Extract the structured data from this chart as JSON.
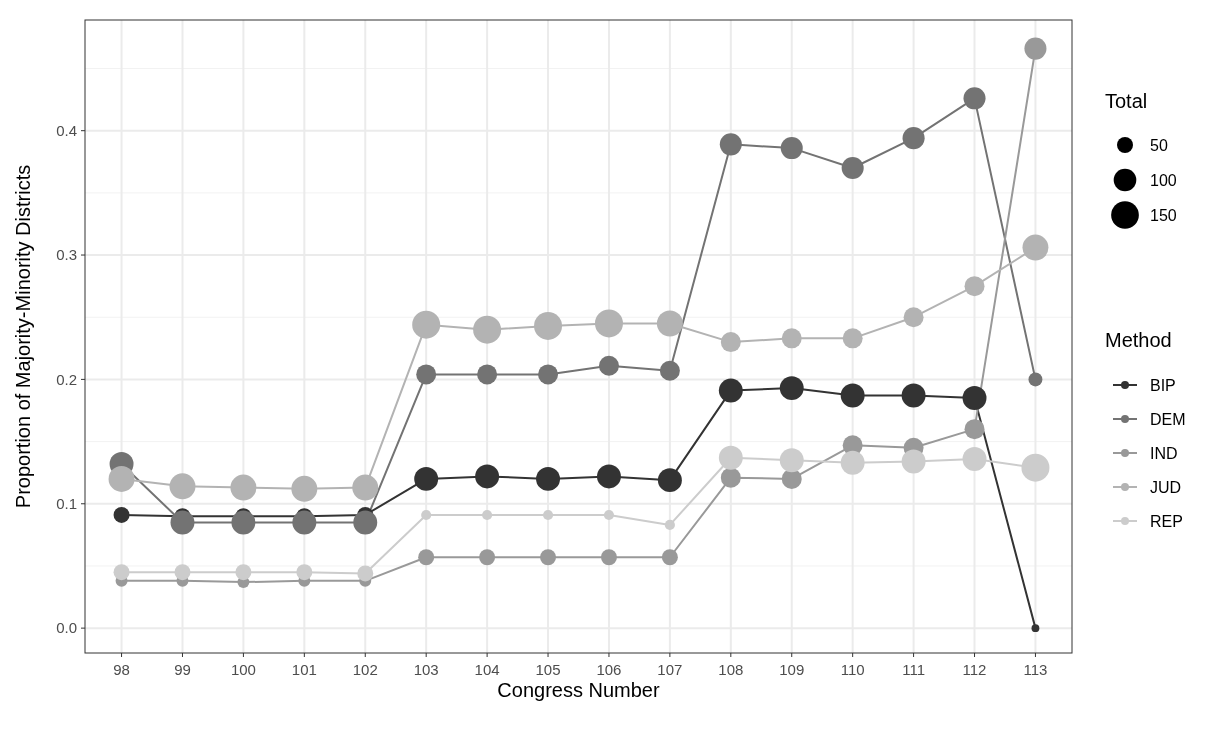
{
  "chart_data": {
    "type": "bubble",
    "xlabel": "Congress Number",
    "ylabel": "Proportion of Majority-Minority Districts",
    "legend_title": "Method",
    "annotations": [
      "Total"
    ],
    "categories": [
      "98",
      "99",
      "100",
      "101",
      "102",
      "103",
      "104",
      "105",
      "106",
      "107",
      "108",
      "109",
      "110",
      "111",
      "112",
      "113"
    ],
    "ylim": [
      -0.02,
      0.489
    ],
    "yticks": [
      {
        "value": 0,
        "label": "0.0"
      },
      {
        "value": 0.1,
        "label": "0.1"
      },
      {
        "value": 0.2,
        "label": "0.2"
      },
      {
        "value": 0.3,
        "label": "0.3"
      },
      {
        "value": 0.4,
        "label": "0.4"
      }
    ],
    "size_legend": [
      50,
      100,
      150
    ],
    "grid": true,
    "legend": "right",
    "marker": "circle",
    "line_style": "solid",
    "series": [
      {
        "type": "line",
        "marker": "none",
        "color": "#333333",
        "values": [
          0.091,
          0.09,
          0.09,
          0.09,
          0.091,
          0.12,
          0.122,
          0.12,
          0.122,
          0.119,
          0.191,
          0.193,
          0.187,
          0.187,
          0.185,
          0.0
        ]
      },
      {
        "type": "line",
        "marker": "none",
        "color": "#737373",
        "values": [
          0.132,
          0.085,
          0.085,
          0.085,
          0.085,
          0.204,
          0.204,
          0.204,
          0.211,
          0.207,
          0.389,
          0.386,
          0.37,
          0.394,
          0.426,
          0.2
        ]
      },
      {
        "type": "line",
        "marker": "none",
        "color": "#999999",
        "values": [
          0.038,
          0.038,
          0.037,
          0.038,
          0.038,
          0.057,
          0.057,
          0.057,
          0.057,
          0.057,
          0.121,
          0.12,
          0.147,
          0.145,
          0.16,
          0.466
        ]
      },
      {
        "type": "line",
        "marker": "none",
        "color": "#b3b3b3",
        "values": [
          0.12,
          0.114,
          0.113,
          0.112,
          0.113,
          0.244,
          0.24,
          0.243,
          0.245,
          0.245,
          0.23,
          0.233,
          0.233,
          0.25,
          0.275,
          0.306
        ]
      },
      {
        "type": "line",
        "marker": "none",
        "color": "#cccccc",
        "values": [
          0.045,
          0.045,
          0.045,
          0.045,
          0.044,
          0.091,
          0.091,
          0.091,
          0.091,
          0.083,
          0.137,
          0.135,
          0.133,
          0.134,
          0.136,
          0.129
        ]
      },
      {
        "name": "BIP",
        "color": "#333333",
        "values": [
          0.091,
          0.09,
          0.09,
          0.09,
          0.091,
          0.12,
          0.122,
          0.12,
          0.122,
          0.119,
          0.191,
          0.193,
          0.187,
          0.187,
          0.185,
          0.0
        ],
        "sizes": [
          50,
          50,
          50,
          50,
          50,
          112,
          112,
          112,
          112,
          112,
          112,
          112,
          112,
          112,
          112,
          12
        ]
      },
      {
        "name": "DEM",
        "color": "#737373",
        "values": [
          0.132,
          0.085,
          0.085,
          0.085,
          0.085,
          0.204,
          0.204,
          0.204,
          0.211,
          0.207,
          0.389,
          0.386,
          0.37,
          0.394,
          0.426,
          0.2
        ],
        "sizes": [
          112,
          112,
          112,
          112,
          112,
          78,
          78,
          78,
          78,
          78,
          95,
          95,
          95,
          95,
          95,
          38
        ]
      },
      {
        "name": "IND",
        "color": "#999999",
        "values": [
          0.038,
          0.038,
          0.037,
          0.038,
          0.038,
          0.057,
          0.057,
          0.057,
          0.057,
          0.057,
          0.121,
          0.12,
          0.147,
          0.145,
          0.16,
          0.466
        ],
        "sizes": [
          28,
          28,
          28,
          28,
          28,
          50,
          50,
          50,
          50,
          50,
          78,
          78,
          78,
          78,
          78,
          95
        ]
      },
      {
        "name": "JUD",
        "color": "#b3b3b3",
        "values": [
          0.12,
          0.114,
          0.113,
          0.112,
          0.113,
          0.244,
          0.24,
          0.243,
          0.245,
          0.245,
          0.23,
          0.233,
          0.233,
          0.25,
          0.275,
          0.306
        ],
        "sizes": [
          132,
          132,
          132,
          132,
          132,
          153,
          153,
          153,
          153,
          132,
          78,
          78,
          78,
          78,
          78,
          132
        ]
      },
      {
        "name": "REP",
        "color": "#cccccc",
        "values": [
          0.045,
          0.045,
          0.045,
          0.045,
          0.044,
          0.091,
          0.091,
          0.091,
          0.091,
          0.083,
          0.137,
          0.135,
          0.133,
          0.134,
          0.136,
          0.129
        ],
        "sizes": [
          50,
          50,
          50,
          50,
          50,
          20,
          20,
          20,
          20,
          20,
          112,
          112,
          112,
          112,
          112,
          153
        ]
      }
    ]
  }
}
